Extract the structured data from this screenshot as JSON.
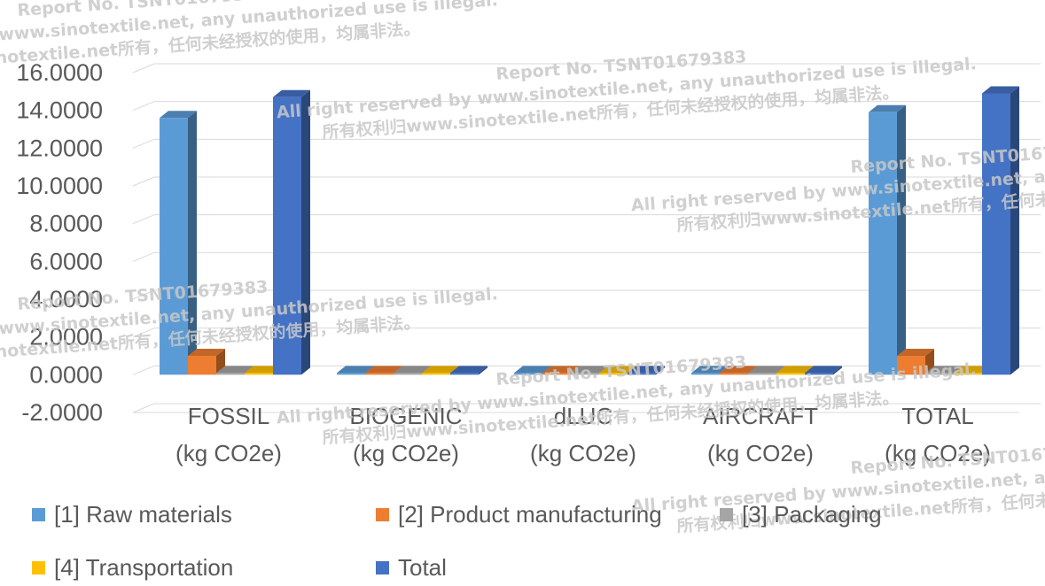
{
  "chart_data": {
    "type": "bar",
    "style": "3d-clustered-column",
    "categories": [
      [
        "FOSSIL",
        "(kg CO2e)"
      ],
      [
        "BIOGENIC",
        "(kg CO2e)"
      ],
      [
        "dLUC",
        "(kg CO2e)"
      ],
      [
        "AIRCRAFT",
        "(kg CO2e)"
      ],
      [
        "TOTAL",
        "(kg CO2e)"
      ]
    ],
    "series": [
      {
        "name": "[1] Raw materials",
        "color": "#5B9BD5",
        "values": [
          13.6,
          0.05,
          0.02,
          0.0,
          13.9
        ]
      },
      {
        "name": "[2] Product manufacturing",
        "color": "#ED7D31",
        "values": [
          1.0,
          0.0,
          0.0,
          0.0,
          1.0
        ]
      },
      {
        "name": "[3] Packaging",
        "color": "#A5A5A5",
        "values": [
          0.05,
          0.0,
          0.0,
          0.0,
          0.05
        ]
      },
      {
        "name": "[4] Transportation",
        "color": "#FFC000",
        "values": [
          0.05,
          0.0,
          0.0,
          0.0,
          0.05
        ]
      },
      {
        "name": "Total",
        "color": "#4472C4",
        "values": [
          14.7,
          0.05,
          0.02,
          0.0,
          14.9
        ]
      }
    ],
    "yticks": [
      "-2.0000",
      "0.0000",
      "2.0000",
      "4.0000",
      "6.0000",
      "8.0000",
      "10.0000",
      "12.0000",
      "14.0000",
      "16.0000"
    ],
    "ylim": [
      -2,
      16
    ],
    "grid": true,
    "legend_position": "bottom",
    "title": "",
    "xlabel": "",
    "ylabel": ""
  },
  "watermark": {
    "lines": [
      "Report No. TSNT01679383",
      "All right reserved by www.sinotextile.net, any unauthorized use is illegal.",
      "所有权利归www.sinotextile.net所有，任何未经授权的使用，均属非法。"
    ]
  }
}
